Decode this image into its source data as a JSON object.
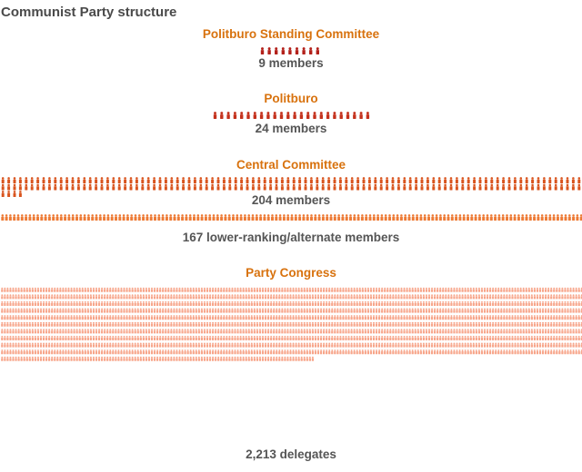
{
  "title": "Communist Party structure",
  "colors": {
    "title_text": "#4a4a4a",
    "group_title": "#d8720e",
    "count_text": "#555555",
    "standing_committee": "#b3201a",
    "politburo": "#c4311c",
    "central_committee": "#d9541e",
    "alternate_members": "#ed7a35",
    "party_congress": "#f7a58a"
  },
  "groups": {
    "standing_committee": {
      "title": "Politburo Standing Committee",
      "count": 9,
      "label": "9 members"
    },
    "politburo": {
      "title": "Politburo",
      "count": 24,
      "label": "24 members"
    },
    "central_committee": {
      "title": "Central Committee",
      "count": 204,
      "label": "204 members"
    },
    "alternate_members": {
      "count": 167,
      "label": "167 lower-ranking/alternate members"
    },
    "party_congress": {
      "title": "Party Congress",
      "count": 2213,
      "label": "2,213 delegates"
    }
  }
}
